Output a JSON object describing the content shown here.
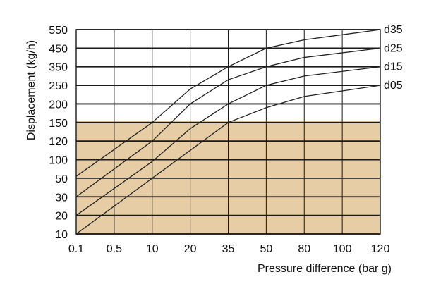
{
  "chart_data": {
    "type": "line",
    "title": "",
    "xlabel": "Pressure difference (bar g)",
    "ylabel": "Displacement (kg/h)",
    "x_ticks": [
      "0.1",
      "0.5",
      "10",
      "20",
      "35",
      "50",
      "80",
      "100",
      "120"
    ],
    "y_ticks": [
      "10",
      "20",
      "30",
      "50",
      "100",
      "120",
      "150",
      "200",
      "250",
      "350",
      "450",
      "550"
    ],
    "shaded_region": {
      "y_from": "10",
      "y_to": "150",
      "color": "#e6cda6"
    },
    "grid": true,
    "series": [
      {
        "name": "d35",
        "points": [
          [
            "0.1",
            55
          ],
          [
            "10",
            150
          ],
          [
            "20",
            240
          ],
          [
            "35",
            350
          ],
          [
            "50",
            450
          ],
          [
            "80",
            495
          ],
          [
            "120",
            550
          ]
        ]
      },
      {
        "name": "d25",
        "points": [
          [
            "0.1",
            30
          ],
          [
            "10",
            120
          ],
          [
            "20",
            200
          ],
          [
            "35",
            280
          ],
          [
            "50",
            350
          ],
          [
            "80",
            400
          ],
          [
            "120",
            450
          ]
        ]
      },
      {
        "name": "d15",
        "points": [
          [
            "0.1",
            20
          ],
          [
            "10",
            95
          ],
          [
            "20",
            140
          ],
          [
            "35",
            200
          ],
          [
            "50",
            250
          ],
          [
            "80",
            300
          ],
          [
            "120",
            350
          ]
        ]
      },
      {
        "name": "d05",
        "points": [
          [
            "0.1",
            10
          ],
          [
            "10",
            50
          ],
          [
            "20",
            110
          ],
          [
            "35",
            150
          ],
          [
            "50",
            190
          ],
          [
            "80",
            220
          ],
          [
            "120",
            250
          ]
        ]
      }
    ],
    "colors": {
      "line": "#222222",
      "grid": "#1a1a1a",
      "shade": "#e6cda6"
    }
  }
}
